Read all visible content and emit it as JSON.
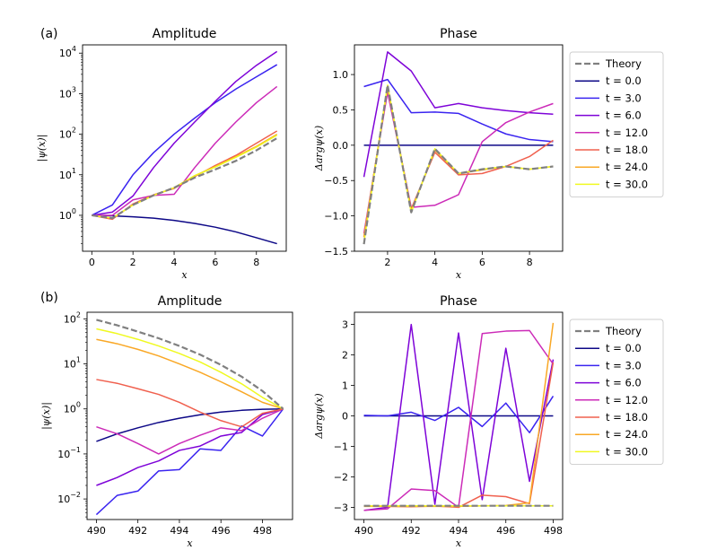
{
  "figure": {
    "series_colors": {
      "Theory": "#808080",
      "t = 0.0": "#0d0887",
      "t = 3.0": "#3a24f0",
      "t = 6.0": "#7e03d8",
      "t = 12.0": "#cc2bb8",
      "t = 18.0": "#f0604e",
      "t = 24.0": "#f9a826",
      "t = 30.0": "#f0f921"
    },
    "legend_entries": [
      "Theory",
      "t = 0.0",
      "t = 3.0",
      "t = 6.0",
      "t = 12.0",
      "t = 18.0",
      "t = 24.0",
      "t = 30.0"
    ]
  },
  "chart_data": [
    {
      "id": "a-amp",
      "panel_label": "(a)",
      "type": "line",
      "title": "Amplitude",
      "xlabel": "x",
      "ylabel": "|ψ(x)|",
      "yscale": "log",
      "legend": false,
      "xlim": [
        -0.45,
        9.45
      ],
      "ylim": [
        0.13,
        16000
      ],
      "xticks": [
        "0",
        "2",
        "4",
        "6",
        "8"
      ],
      "xtick_values": [
        0,
        2,
        4,
        6,
        8
      ],
      "yticks": [
        {
          "base": "10",
          "exp": "0",
          "value": 1
        },
        {
          "base": "10",
          "exp": "1",
          "value": 10
        },
        {
          "base": "10",
          "exp": "2",
          "value": 100
        },
        {
          "base": "10",
          "exp": "3",
          "value": 1000
        },
        {
          "base": "10",
          "exp": "4",
          "value": 10000
        }
      ],
      "x": [
        0,
        1,
        2,
        3,
        4,
        5,
        6,
        7,
        8,
        9
      ],
      "series": [
        {
          "name": "t = 0.0",
          "values": [
            1,
            0.97,
            0.92,
            0.85,
            0.75,
            0.63,
            0.51,
            0.39,
            0.28,
            0.2
          ]
        },
        {
          "name": "t = 3.0",
          "values": [
            1,
            1.8,
            10,
            35,
            100,
            250,
            600,
            1300,
            2600,
            5200
          ]
        },
        {
          "name": "t = 6.0",
          "values": [
            1,
            1.2,
            3,
            15,
            60,
            200,
            650,
            2000,
            5000,
            11000
          ]
        },
        {
          "name": "t = 12.0",
          "values": [
            1,
            1,
            2.4,
            3.1,
            3.3,
            15,
            60,
            200,
            600,
            1500
          ]
        },
        {
          "name": "t = 18.0",
          "values": [
            1,
            0.8,
            1.9,
            3.2,
            4.6,
            9,
            17,
            30,
            60,
            120
          ]
        },
        {
          "name": "t = 24.0",
          "values": [
            1,
            0.85,
            1.8,
            3.1,
            4.8,
            9.5,
            16,
            28,
            50,
            100
          ]
        },
        {
          "name": "t = 30.0",
          "values": [
            1,
            0.85,
            1.8,
            3.1,
            4.8,
            9.5,
            15.5,
            27,
            48,
            95
          ]
        },
        {
          "name": "Theory",
          "dashed": true,
          "values": [
            1,
            0.85,
            1.8,
            3.1,
            4.8,
            8.5,
            13.5,
            22,
            40,
            80
          ]
        }
      ]
    },
    {
      "id": "a-ph",
      "type": "line",
      "title": "Phase",
      "xlabel": "x",
      "ylabel": "Δargψ(x)",
      "yscale": "linear",
      "legend": true,
      "xlim": [
        0.6,
        9.4
      ],
      "ylim": [
        -1.5,
        1.42
      ],
      "xticks": [
        "2",
        "4",
        "6",
        "8"
      ],
      "xtick_values": [
        2,
        4,
        6,
        8
      ],
      "yticks": [
        "−1.5",
        "−1.0",
        "−0.5",
        "0.0",
        "0.5",
        "1.0"
      ],
      "ytick_values": [
        -1.5,
        -1.0,
        -0.5,
        0.0,
        0.5,
        1.0
      ],
      "x": [
        1,
        2,
        3,
        4,
        5,
        6,
        7,
        8,
        9
      ],
      "series": [
        {
          "name": "t = 0.0",
          "values": [
            0,
            0,
            0,
            0,
            0,
            0,
            0,
            0,
            0
          ]
        },
        {
          "name": "t = 3.0",
          "values": [
            0.83,
            0.93,
            0.46,
            0.47,
            0.45,
            0.3,
            0.16,
            0.08,
            0.05
          ]
        },
        {
          "name": "t = 6.0",
          "values": [
            -0.45,
            1.32,
            1.05,
            0.53,
            0.59,
            0.53,
            0.49,
            0.46,
            0.44
          ]
        },
        {
          "name": "t = 12.0",
          "values": [
            -1.25,
            0.75,
            -0.88,
            -0.85,
            -0.7,
            0.05,
            0.32,
            0.47,
            0.59
          ]
        },
        {
          "name": "t = 18.0",
          "values": [
            -1.3,
            0.82,
            -0.9,
            -0.1,
            -0.42,
            -0.4,
            -0.3,
            -0.16,
            0.07
          ]
        },
        {
          "name": "t = 24.0",
          "values": [
            -1.3,
            0.82,
            -0.93,
            -0.07,
            -0.4,
            -0.35,
            -0.3,
            -0.34,
            -0.3
          ]
        },
        {
          "name": "t = 30.0",
          "values": [
            -1.38,
            0.85,
            -0.95,
            -0.05,
            -0.4,
            -0.34,
            -0.3,
            -0.34,
            -0.3
          ]
        },
        {
          "name": "Theory",
          "dashed": true,
          "values": [
            -1.4,
            0.85,
            -0.95,
            -0.05,
            -0.4,
            -0.34,
            -0.3,
            -0.34,
            -0.3
          ]
        }
      ]
    },
    {
      "id": "b-amp",
      "panel_label": "(b)",
      "type": "line",
      "title": "Amplitude",
      "xlabel": "x",
      "ylabel": "|ψ(x)|",
      "yscale": "log",
      "legend": false,
      "xlim": [
        489.55,
        499.45
      ],
      "ylim": [
        0.0035,
        140
      ],
      "xticks": [
        "490",
        "492",
        "494",
        "496",
        "498"
      ],
      "xtick_values": [
        490,
        492,
        494,
        496,
        498
      ],
      "yticks": [
        {
          "base": "10",
          "exp": "−2",
          "value": 0.01
        },
        {
          "base": "10",
          "exp": "−1",
          "value": 0.1
        },
        {
          "base": "10",
          "exp": "0",
          "value": 1
        },
        {
          "base": "10",
          "exp": "1",
          "value": 10
        },
        {
          "base": "10",
          "exp": "2",
          "value": 100
        }
      ],
      "x": [
        490,
        491,
        492,
        493,
        494,
        495,
        496,
        497,
        498,
        499
      ],
      "series": [
        {
          "name": "t = 0.0",
          "values": [
            0.19,
            0.28,
            0.38,
            0.5,
            0.62,
            0.74,
            0.85,
            0.93,
            0.98,
            1
          ]
        },
        {
          "name": "t = 3.0",
          "values": [
            0.0045,
            0.012,
            0.015,
            0.042,
            0.045,
            0.13,
            0.12,
            0.42,
            0.25,
            1
          ]
        },
        {
          "name": "t = 6.0",
          "values": [
            0.02,
            0.03,
            0.05,
            0.07,
            0.12,
            0.15,
            0.25,
            0.3,
            0.75,
            1
          ]
        },
        {
          "name": "t = 12.0",
          "values": [
            0.4,
            0.28,
            0.17,
            0.1,
            0.17,
            0.26,
            0.38,
            0.33,
            0.62,
            1
          ]
        },
        {
          "name": "t = 18.0",
          "values": [
            4.5,
            3.7,
            2.8,
            2.1,
            1.4,
            0.85,
            0.55,
            0.4,
            0.8,
            1
          ]
        },
        {
          "name": "t = 24.0",
          "values": [
            35,
            28,
            21,
            15,
            10,
            6.5,
            4,
            2.4,
            1.4,
            1
          ]
        },
        {
          "name": "t = 30.0",
          "values": [
            60,
            47,
            35,
            25,
            17,
            11,
            6.5,
            3.6,
            1.8,
            1
          ]
        },
        {
          "name": "Theory",
          "dashed": true,
          "values": [
            95,
            72,
            52,
            37,
            25,
            16,
            9.5,
            5.2,
            2.5,
            1
          ]
        }
      ]
    },
    {
      "id": "b-ph",
      "type": "line",
      "title": "Phase",
      "xlabel": "x",
      "ylabel": "Δargψ(x)",
      "yscale": "linear",
      "legend": true,
      "xlim": [
        489.6,
        498.4
      ],
      "ylim": [
        -3.4,
        3.4
      ],
      "xticks": [
        "490",
        "492",
        "494",
        "496",
        "498"
      ],
      "xtick_values": [
        490,
        492,
        494,
        496,
        498
      ],
      "yticks": [
        "−3",
        "−2",
        "−1",
        "0",
        "1",
        "2",
        "3"
      ],
      "ytick_values": [
        -3,
        -2,
        -1,
        0,
        1,
        2,
        3
      ],
      "x": [
        490,
        491,
        492,
        493,
        494,
        495,
        496,
        497,
        498
      ],
      "series": [
        {
          "name": "t = 0.0",
          "values": [
            0,
            0,
            0,
            0,
            0,
            0,
            0,
            0,
            0
          ]
        },
        {
          "name": "t = 3.0",
          "values": [
            0.02,
            0,
            0.12,
            -0.15,
            0.28,
            -0.35,
            0.42,
            -0.55,
            0.65
          ]
        },
        {
          "name": "t = 6.0",
          "values": [
            -3.1,
            -3.0,
            3.0,
            -2.9,
            2.72,
            -2.75,
            2.22,
            -2.15,
            1.85
          ]
        },
        {
          "name": "t = 12.0",
          "values": [
            -3.1,
            -3.05,
            -2.4,
            -2.45,
            -3.0,
            2.7,
            2.78,
            2.8,
            1.7
          ]
        },
        {
          "name": "t = 18.0",
          "values": [
            -2.95,
            -2.97,
            -2.98,
            -2.96,
            -3.0,
            -2.6,
            -2.65,
            -2.88,
            1.75
          ]
        },
        {
          "name": "t = 24.0",
          "values": [
            -2.97,
            -2.97,
            -2.97,
            -2.97,
            -2.97,
            -2.95,
            -2.94,
            -2.85,
            3.05
          ]
        },
        {
          "name": "t = 30.0",
          "values": [
            -2.95,
            -2.95,
            -2.95,
            -2.95,
            -2.95,
            -2.95,
            -2.95,
            -2.95,
            -2.95
          ]
        },
        {
          "name": "Theory",
          "dashed": true,
          "values": [
            -2.95,
            -2.95,
            -2.95,
            -2.95,
            -2.95,
            -2.95,
            -2.95,
            -2.95,
            -2.95
          ]
        }
      ]
    }
  ]
}
